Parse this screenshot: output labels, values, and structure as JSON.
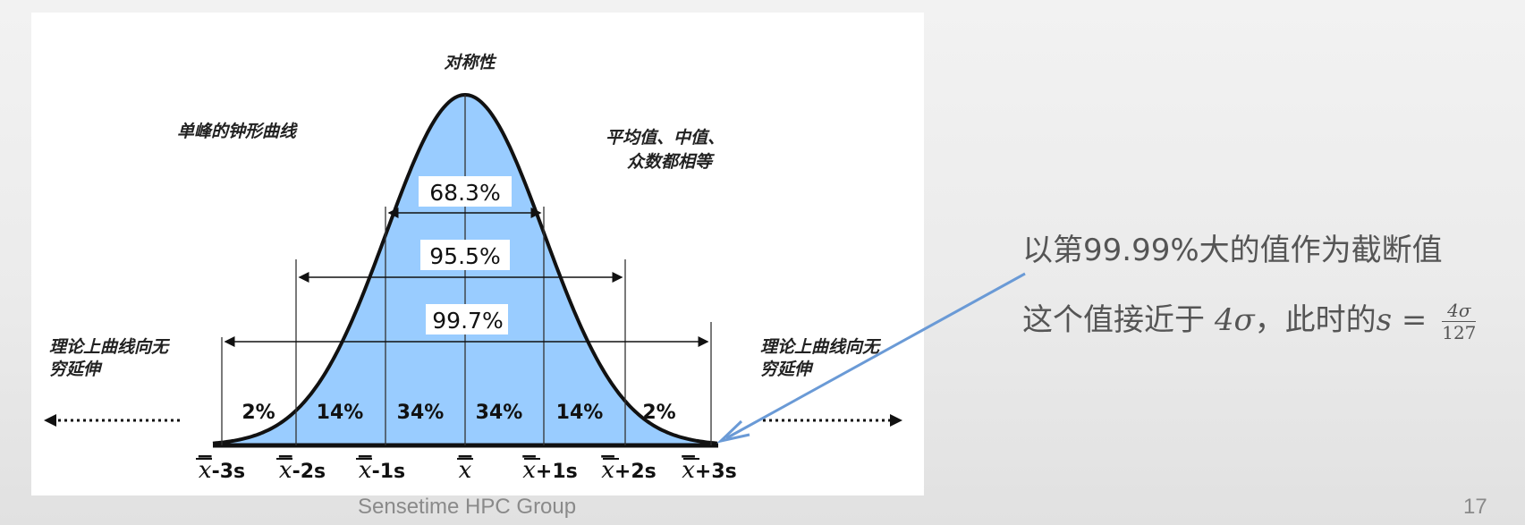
{
  "diagram": {
    "top_label": "对称性",
    "left_label": "单峰的钟形曲线",
    "right_label_line1": "平均值、中值、",
    "right_label_line2": "众数都相等",
    "tail_left_line1": "理论上曲线向无",
    "tail_left_line2": "穷延伸",
    "tail_right_line1": "理论上曲线向无",
    "tail_right_line2": "穷延伸",
    "interval_68": "68.3%",
    "interval_95": "95.5%",
    "interval_99": "99.7%",
    "region_pcts": [
      "2%",
      "14%",
      "34%",
      "34%",
      "14%",
      "2%"
    ],
    "axis_ticks": [
      "-3s",
      "-2s",
      "-1s",
      "",
      "+1s",
      "+2s",
      "+3s"
    ],
    "x_bar_symbol": "x",
    "fill_color": "#99ccff"
  },
  "note": {
    "line1": "以第99.99%大的值作为截断值",
    "line2_prefix": "这个值接近于",
    "line2_math": "4σ",
    "line2_mid": "，此时的",
    "line2_var": "s",
    "line2_eq": " = ",
    "frac_num": "4σ",
    "frac_den": "127",
    "arrow_color": "#6a9ad6"
  },
  "footer": {
    "group": "Sensetime HPC Group",
    "page": "17"
  }
}
